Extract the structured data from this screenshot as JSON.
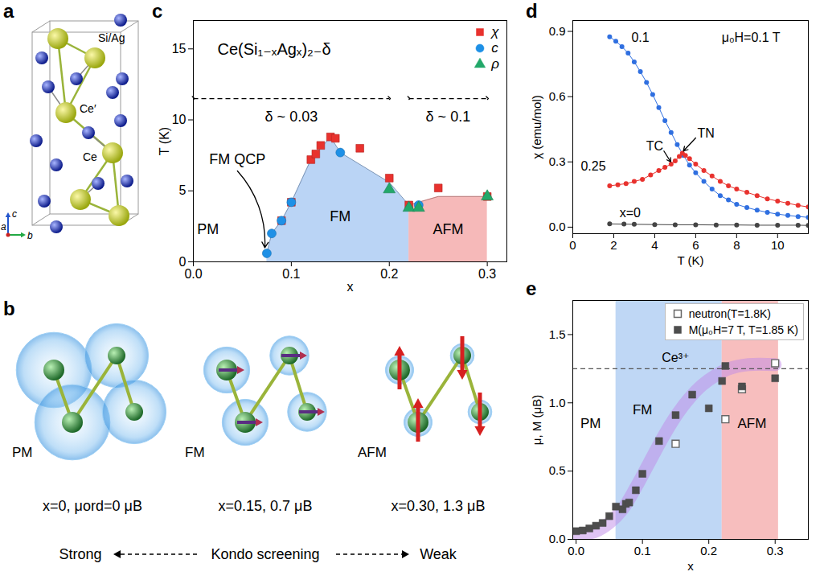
{
  "chart_data": [
    {
      "panel": "c",
      "type": "scatter",
      "title": "Ce(Si₁₋ₓAgₓ)₂₋δ",
      "x_label": "x",
      "y_label": "T (K)",
      "xlim": [
        0,
        0.32
      ],
      "xticks": [
        {
          "value": 0,
          "label": "0.0"
        },
        0.1,
        0.2,
        0.3
      ],
      "ylim": [
        0,
        17
      ],
      "yticks": [
        0,
        5,
        10,
        15
      ],
      "legend": "top-right",
      "series": [
        {
          "name": "χ",
          "color": "#e8322e",
          "marker": "square",
          "x": [
            0.09,
            0.1,
            0.12,
            0.125,
            0.13,
            0.14,
            0.145,
            0.17,
            0.2,
            0.22,
            0.25,
            0.3
          ],
          "values": [
            2.9,
            4.2,
            7.2,
            7.6,
            8.2,
            8.8,
            8.7,
            8.0,
            5.9,
            4.0,
            5.2,
            4.6
          ]
        },
        {
          "name": "c",
          "color": "#1e90e6",
          "marker": "circle",
          "x": [
            0.075,
            0.08,
            0.09,
            0.1,
            0.15,
            0.23
          ],
          "values": [
            0.6,
            2.0,
            2.9,
            4.2,
            7.7,
            4.0
          ]
        },
        {
          "name": "ρ",
          "color": "#22a86a",
          "marker": "triangle",
          "x": [
            0.2,
            0.22,
            0.23,
            0.3
          ],
          "values": [
            5.1,
            3.8,
            3.8,
            4.6
          ]
        }
      ],
      "regions": [
        {
          "label": "FM",
          "color": "#a9c9f2",
          "label_x": 0.15,
          "label_y": 3.2,
          "x": [
            0.075,
            0.08,
            0.09,
            0.1,
            0.12,
            0.14,
            0.15,
            0.2,
            0.22
          ],
          "values": [
            0.6,
            2.0,
            2.9,
            4.2,
            7.2,
            8.8,
            7.7,
            5.6,
            4.0
          ]
        },
        {
          "label": "AFM",
          "color": "#f4a8a8",
          "label_x": 0.26,
          "label_y": 2.3,
          "x": [
            0.22,
            0.25,
            0.3
          ],
          "values": [
            4.0,
            4.6,
            4.6
          ]
        }
      ],
      "annotations": [
        {
          "text": "PM",
          "x": 0.015,
          "y": 2.3
        },
        {
          "text": "FM QCP",
          "x": 0.045,
          "y": 7.2
        },
        {
          "text": "δ ~ 0.03",
          "x": 0.1,
          "y": 10.2
        },
        {
          "text": "δ ~ 0.1",
          "x": 0.26,
          "y": 10.2
        }
      ],
      "arrows": [
        {
          "x1": 0.045,
          "y1": 6.4,
          "x2": 0.073,
          "y2": 1.0
        },
        {
          "x1": 0,
          "y1": 11.5,
          "x2": 0.2,
          "y2": 11.5,
          "line_style": "dashed"
        },
        {
          "x1": 0.22,
          "y1": 11.5,
          "x2": 0.3,
          "y2": 11.5,
          "line_style": "dashed"
        }
      ]
    },
    {
      "panel": "d",
      "type": "line",
      "x_label": "T (K)",
      "y_label": "χ (emu/mol)",
      "xlim": [
        0,
        11.5
      ],
      "xticks": [
        0,
        2,
        4,
        6,
        8,
        10
      ],
      "ylim": [
        -0.03,
        0.95
      ],
      "yticks": [
        {
          "value": 0,
          "label": "0.0"
        },
        0.3,
        0.6,
        0.9
      ],
      "series": [
        {
          "name": "0.1",
          "color": "#2f6fe0",
          "marker": "circle",
          "label_x": 3.3,
          "label_y": 0.87,
          "x": [
            1.8,
            2.1,
            2.4,
            2.7,
            3.0,
            3.3,
            3.6,
            3.9,
            4.2,
            4.5,
            4.8,
            5.1,
            5.4,
            5.7,
            6.0,
            6.4,
            6.8,
            7.2,
            7.6,
            8.0,
            8.5,
            9.0,
            9.5,
            10.0,
            10.5,
            11.0,
            11.5
          ],
          "values": [
            0.875,
            0.855,
            0.83,
            0.8,
            0.76,
            0.715,
            0.665,
            0.61,
            0.55,
            0.49,
            0.435,
            0.38,
            0.33,
            0.285,
            0.25,
            0.21,
            0.175,
            0.145,
            0.125,
            0.105,
            0.09,
            0.078,
            0.068,
            0.06,
            0.054,
            0.049,
            0.045
          ]
        },
        {
          "name": "0.25",
          "color": "#e8322e",
          "marker": "circle",
          "label_x": 1.0,
          "label_y": 0.28,
          "x": [
            1.8,
            2.2,
            2.6,
            3.0,
            3.4,
            3.8,
            4.2,
            4.5,
            4.8,
            5.0,
            5.2,
            5.35,
            5.5,
            5.7,
            6.0,
            6.4,
            6.8,
            7.2,
            7.6,
            8.0,
            8.5,
            9.0,
            9.5,
            10.0,
            10.5,
            11.0,
            11.5
          ],
          "values": [
            0.19,
            0.195,
            0.2,
            0.21,
            0.22,
            0.24,
            0.26,
            0.275,
            0.29,
            0.305,
            0.325,
            0.34,
            0.33,
            0.315,
            0.29,
            0.26,
            0.235,
            0.21,
            0.19,
            0.175,
            0.16,
            0.145,
            0.13,
            0.12,
            0.11,
            0.1,
            0.093
          ]
        },
        {
          "name": "x=0",
          "color": "#444444",
          "marker": "circle",
          "label_x": 2.8,
          "label_y": 0.065,
          "x": [
            1.8,
            2.5,
            3.0,
            4.0,
            5.0,
            6.0,
            7.0,
            8.0,
            9.0,
            10.0,
            11.0,
            11.5
          ],
          "values": [
            0.015,
            0.014,
            0.013,
            0.012,
            0.011,
            0.011,
            0.01,
            0.01,
            0.009,
            0.009,
            0.009,
            0.008
          ]
        }
      ],
      "annotations": [
        {
          "text": "μ₀H=0.1 T",
          "x": 8.7,
          "y": 0.87
        },
        {
          "text": "TC",
          "x": 4.0,
          "y": 0.37
        },
        {
          "text": "TN",
          "x": 6.5,
          "y": 0.43
        }
      ],
      "arrows": [
        {
          "x1": 4.45,
          "y1": 0.35,
          "x2": 4.78,
          "y2": 0.3
        },
        {
          "x1": 6.0,
          "y1": 0.41,
          "x2": 5.4,
          "y2": 0.35
        }
      ]
    },
    {
      "panel": "e",
      "type": "scatter",
      "x_label": "x",
      "y_label": "μ, M (μB)",
      "xlim": [
        -0.005,
        0.35
      ],
      "xticks": [
        {
          "value": 0,
          "label": "0.0"
        },
        0.1,
        0.2,
        0.3
      ],
      "ylim": [
        0,
        1.75
      ],
      "yticks": [
        {
          "value": 0,
          "label": "0.0"
        },
        0.5,
        {
          "value": 1,
          "label": "1.0"
        },
        1.5
      ],
      "legend": "top-right",
      "series": [
        {
          "name": "neutron(T=1.8K)",
          "color": "#666666",
          "marker": "open_square",
          "x": [
            0.15,
            0.225,
            0.25,
            0.3
          ],
          "values": [
            0.7,
            0.88,
            1.1,
            1.29
          ],
          "errors": [
            0.02,
            0.02,
            0.02,
            0.02
          ]
        },
        {
          "name": "M(μ₀H=7 T, T=1.85 K)",
          "color": "#4d4d4d",
          "marker": "square",
          "x": [
            0,
            0.01,
            0.02,
            0.03,
            0.04,
            0.05,
            0.06,
            0.07,
            0.075,
            0.08,
            0.09,
            0.1,
            0.125,
            0.15,
            0.175,
            0.2,
            0.22,
            0.225,
            0.25,
            0.3
          ],
          "values": [
            0.06,
            0.065,
            0.08,
            0.1,
            0.12,
            0.17,
            0.24,
            0.22,
            0.26,
            0.27,
            0.36,
            0.48,
            0.72,
            0.91,
            1.06,
            0.96,
            1.16,
            1.27,
            1.12,
            1.18
          ]
        }
      ],
      "regions": [
        {
          "label": "PM",
          "color": "#ffffff",
          "x": [
            -0.005,
            0.06
          ],
          "label_x": 0.022,
          "label_y": 0.85
        },
        {
          "label": "FM",
          "color": "#a9c9f2",
          "x": [
            0.06,
            0.22
          ],
          "label_x": 0.1,
          "label_y": 0.95
        },
        {
          "label": "AFM",
          "color": "#f4a8a8",
          "x": [
            0.22,
            0.305
          ],
          "label_x": 0.265,
          "label_y": 0.85
        }
      ],
      "reference": {
        "text": "Ce³⁺",
        "value": 1.25,
        "line_style": "dashed",
        "label_x": 0.15,
        "label_y": 1.33
      },
      "band": {
        "color": "#c08ae8",
        "x": [
          0,
          0.03,
          0.05,
          0.07,
          0.09,
          0.11,
          0.13,
          0.15,
          0.17,
          0.19,
          0.21,
          0.23,
          0.26,
          0.3
        ],
        "values": [
          0.03,
          0.06,
          0.12,
          0.22,
          0.38,
          0.56,
          0.74,
          0.9,
          1.03,
          1.13,
          1.2,
          1.25,
          1.28,
          1.28
        ]
      }
    }
  ],
  "diagrams": {
    "a": {
      "panel": "a",
      "labels": {
        "si_ag": "Si/Ag",
        "ce_prime": "Ce′",
        "ce": "Ce"
      },
      "axes": {
        "a": "a",
        "b": "b",
        "c": "c"
      }
    },
    "b": {
      "panel": "b",
      "states": [
        {
          "label": "PM",
          "caption": "x=0, μord=0 μB"
        },
        {
          "label": "FM",
          "caption": "x=0.15, 0.7 μB"
        },
        {
          "label": "AFM",
          "caption": "x=0.30, 1.3 μB"
        }
      ],
      "scale": {
        "left": "Strong",
        "center": "Kondo screening",
        "right": "Weak"
      }
    }
  }
}
